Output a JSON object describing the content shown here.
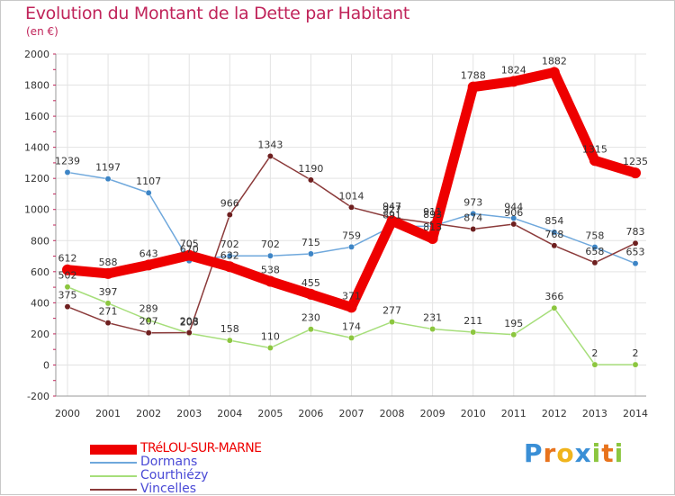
{
  "title": "Evolution du Montant de la Dette par Habitant",
  "subtitle": "(en €)",
  "brand": {
    "letters": [
      "P",
      "r",
      "o",
      "x",
      "i",
      "t",
      "i"
    ],
    "colors": [
      "#3a8fd6",
      "#e8731c",
      "#f0b41c",
      "#3a8fd6",
      "#8cc63f",
      "#e8731c",
      "#8cc63f"
    ]
  },
  "chart_data": {
    "type": "line",
    "title": "Evolution du Montant de la Dette par Habitant",
    "ylabel": "(en €)",
    "xlabel": "",
    "ylim": [
      -200,
      2000
    ],
    "yticks": [
      "2000",
      "1800",
      "1600",
      "1400",
      "1200",
      "1000",
      "800",
      "600",
      "400",
      "200",
      "0",
      "-200"
    ],
    "ytick_values": [
      2000,
      1800,
      1600,
      1400,
      1200,
      1000,
      800,
      600,
      400,
      200,
      0,
      -200
    ],
    "categories": [
      "2000",
      "2001",
      "2002",
      "2003",
      "2004",
      "2005",
      "2006",
      "2007",
      "2008",
      "2009",
      "2010",
      "2011",
      "2012",
      "2013",
      "2014"
    ],
    "grid": true,
    "series": [
      {
        "name": "Dormans",
        "color": "#6fa8dc",
        "dot": "#3d85c6",
        "values": [
          1239,
          1197,
          1107,
          670,
          702,
          702,
          715,
          759,
          891,
          893,
          973,
          944,
          854,
          758,
          653
        ],
        "labels": [
          "1239",
          "1197",
          "1107",
          "670",
          "702",
          "702",
          "715",
          "759",
          "891",
          "893",
          "973",
          "944",
          "854",
          "758",
          "653"
        ]
      },
      {
        "name": "Courthiézy",
        "color": "#a6de7a",
        "dot": "#8cc63f",
        "values": [
          502,
          397,
          289,
          203,
          158,
          110,
          230,
          174,
          277,
          231,
          211,
          195,
          366,
          2,
          2
        ],
        "labels": [
          "502",
          "397",
          "289",
          "203",
          "158",
          "110",
          "230",
          "174",
          "277",
          "231",
          "211",
          "195",
          "366",
          "2",
          "2"
        ]
      },
      {
        "name": "Vincelles",
        "color": "#8b3a3a",
        "dot": "#6e1f1f",
        "values": [
          375,
          271,
          207,
          208,
          966,
          1343,
          1190,
          1014,
          947,
          911,
          874,
          906,
          768,
          658,
          783
        ],
        "labels": [
          "375",
          "271",
          "207",
          "208",
          "966",
          "1343",
          "1190",
          "1014",
          "947",
          "911",
          "874",
          "906",
          "768",
          "658",
          "783"
        ]
      },
      {
        "name": "TRéLOU-SUR-MARNE",
        "color": "#ee0000",
        "dot": "#ee0000",
        "bold": true,
        "values": [
          612,
          588,
          643,
          705,
          632,
          538,
          455,
          371,
          927,
          813,
          1788,
          1824,
          1882,
          1315,
          1235
        ],
        "labels": [
          "612",
          "588",
          "643",
          "705",
          "632",
          "538",
          "455",
          "371",
          "927",
          "813",
          "1788",
          "1824",
          "1882",
          "1315",
          "1235"
        ]
      }
    ],
    "legend": [
      "TRéLOU-SUR-MARNE",
      "Dormans",
      "Courthiézy",
      "Vincelles"
    ],
    "legend_position": "bottom-left"
  }
}
